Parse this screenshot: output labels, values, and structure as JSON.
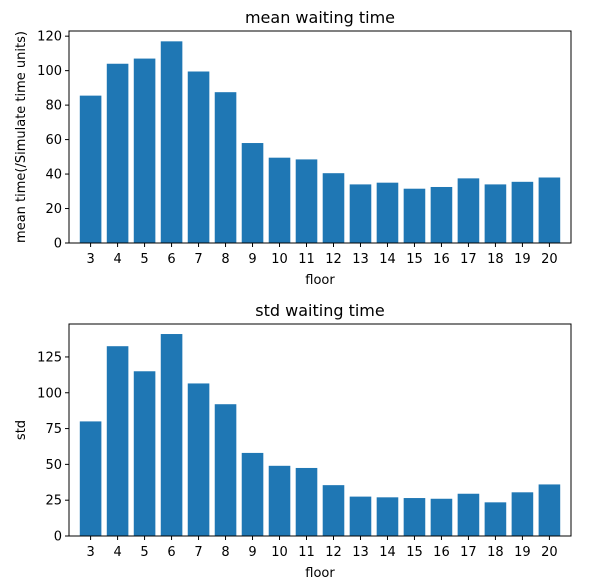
{
  "chart_data": [
    {
      "type": "bar",
      "title": "mean waiting time",
      "xlabel": "floor",
      "ylabel": "mean time(/Simulate time units)",
      "categories": [
        "3",
        "4",
        "5",
        "6",
        "7",
        "8",
        "9",
        "10",
        "11",
        "12",
        "13",
        "14",
        "15",
        "16",
        "17",
        "18",
        "19",
        "20"
      ],
      "values": [
        85.5,
        104,
        107,
        117,
        99.5,
        87.5,
        58,
        49.5,
        48.5,
        40.5,
        34,
        35,
        31.5,
        32.5,
        37.5,
        34,
        35.5,
        38
      ],
      "ylim": [
        0,
        123
      ],
      "yticks": [
        0,
        20,
        40,
        60,
        80,
        100,
        120
      ],
      "grid": false,
      "bar_color": "#1f77b4"
    },
    {
      "type": "bar",
      "title": "std waiting time",
      "xlabel": "floor",
      "ylabel": "std",
      "categories": [
        "3",
        "4",
        "5",
        "6",
        "7",
        "8",
        "9",
        "10",
        "11",
        "12",
        "13",
        "14",
        "15",
        "16",
        "17",
        "18",
        "19",
        "20"
      ],
      "values": [
        80,
        132.5,
        115,
        141,
        106.5,
        92,
        58,
        49,
        47.5,
        35.5,
        27.5,
        27,
        26.5,
        26,
        29.5,
        23.5,
        30.5,
        36
      ],
      "ylim": [
        0,
        148
      ],
      "yticks": [
        0,
        25,
        50,
        75,
        100,
        125
      ],
      "grid": false,
      "bar_color": "#1f77b4"
    }
  ]
}
